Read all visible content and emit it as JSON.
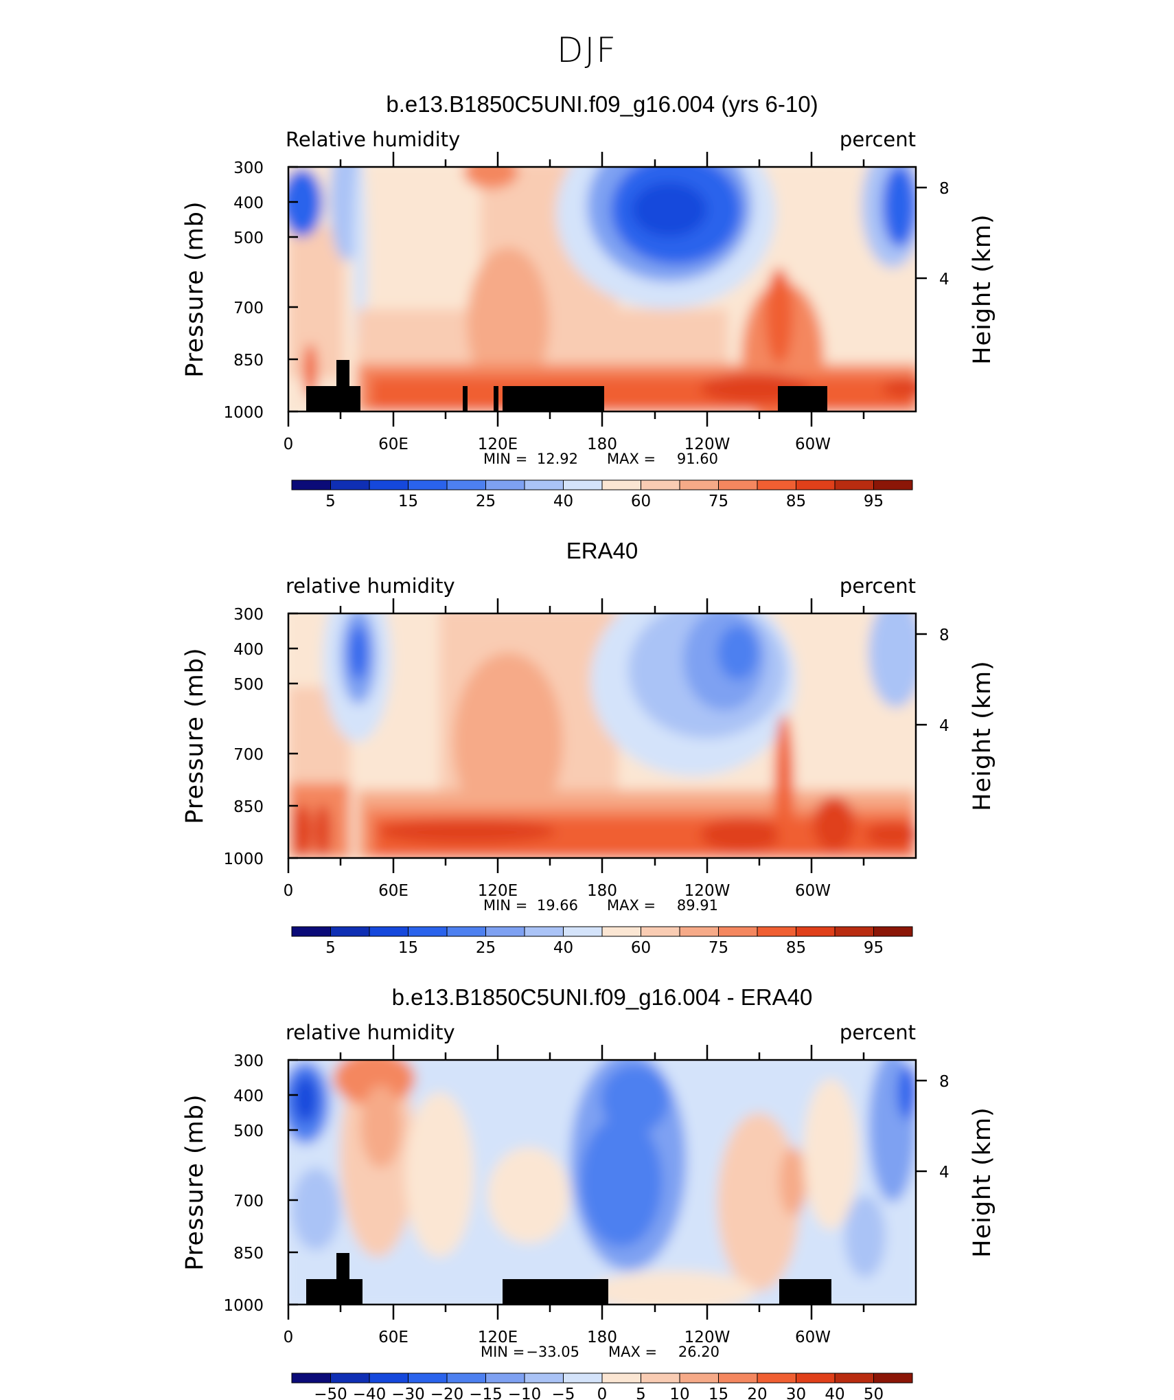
{
  "figure_title": "DJF",
  "colors": {
    "scale": [
      "#0b0b78",
      "#0f2fb4",
      "#1548dc",
      "#2a63ec",
      "#4d80f0",
      "#7ea1f2",
      "#aac3f6",
      "#d4e3fa",
      "#fbe6d3",
      "#f9ccb3",
      "#f6aa88",
      "#f4875f",
      "#f05f32",
      "#e0401a",
      "#b92c10",
      "#8b1607"
    ],
    "land": "#000000"
  },
  "panels": [
    {
      "title": "b.e13.B1850C5UNI.f09_g16.004 (yrs 6-10)",
      "left_label": "Relative humidity",
      "right_label": "percent",
      "min_label": "MIN =",
      "min_value": "12.92",
      "max_label": "MAX =",
      "max_value": "91.60",
      "colorbar_labels": [
        "5",
        "15",
        "25",
        "40",
        "60",
        "75",
        "85",
        "95"
      ]
    },
    {
      "title": "ERA40",
      "left_label": "relative humidity",
      "right_label": "percent",
      "min_label": "MIN =",
      "min_value": "19.66",
      "max_label": "MAX =",
      "max_value": "89.91",
      "colorbar_labels": [
        "5",
        "15",
        "25",
        "40",
        "60",
        "75",
        "85",
        "95"
      ]
    },
    {
      "title": "b.e13.B1850C5UNI.f09_g16.004 - ERA40",
      "left_label": "relative humidity",
      "right_label": "percent",
      "min_label": "MIN =",
      "min_value": "−33.05",
      "max_label": "MAX =",
      "max_value": "26.20",
      "colorbar_labels": [
        "−50",
        "−40",
        "−30",
        "−20",
        "−15",
        "−10",
        "−5",
        "0",
        "5",
        "10",
        "15",
        "20",
        "30",
        "40",
        "50"
      ]
    }
  ],
  "chart_data": [
    {
      "type": "heatmap",
      "title": "b.e13.B1850C5UNI.f09_g16.004 (yrs 6-10)",
      "variable": "Relative humidity",
      "units": "percent",
      "xlabel": "",
      "ylabel": "Pressure (mb)",
      "y2label": "Height (km)",
      "x_tick_labels": [
        "0",
        "60E",
        "120E",
        "180",
        "120W",
        "60W"
      ],
      "y_tick_labels": [
        "300",
        "400",
        "500",
        "700",
        "850",
        "1000"
      ],
      "y2_tick_labels": [
        "8",
        "4"
      ],
      "xlim": [
        0,
        360
      ],
      "ylim": [
        1000,
        300
      ],
      "y_scale": "log",
      "min": 12.92,
      "max": 91.6,
      "contour_levels": [
        5,
        10,
        15,
        20,
        25,
        30,
        40,
        50,
        60,
        70,
        75,
        80,
        85,
        90,
        95
      ]
    },
    {
      "type": "heatmap",
      "title": "ERA40",
      "variable": "relative humidity",
      "units": "percent",
      "xlabel": "",
      "ylabel": "Pressure (mb)",
      "y2label": "Height (km)",
      "x_tick_labels": [
        "0",
        "60E",
        "120E",
        "180",
        "120W",
        "60W"
      ],
      "y_tick_labels": [
        "300",
        "400",
        "500",
        "700",
        "850",
        "1000"
      ],
      "y2_tick_labels": [
        "8",
        "4"
      ],
      "xlim": [
        0,
        360
      ],
      "ylim": [
        1000,
        300
      ],
      "y_scale": "log",
      "min": 19.66,
      "max": 89.91,
      "contour_levels": [
        5,
        10,
        15,
        20,
        25,
        30,
        40,
        50,
        60,
        70,
        75,
        80,
        85,
        90,
        95
      ]
    },
    {
      "type": "heatmap",
      "title": "b.e13.B1850C5UNI.f09_g16.004 - ERA40",
      "variable": "relative humidity",
      "units": "percent",
      "xlabel": "",
      "ylabel": "Pressure (mb)",
      "y2label": "Height (km)",
      "x_tick_labels": [
        "0",
        "60E",
        "120E",
        "180",
        "120W",
        "60W"
      ],
      "y_tick_labels": [
        "300",
        "400",
        "500",
        "700",
        "850",
        "1000"
      ],
      "y2_tick_labels": [
        "8",
        "4"
      ],
      "xlim": [
        0,
        360
      ],
      "ylim": [
        1000,
        300
      ],
      "y_scale": "log",
      "min": -33.05,
      "max": 26.2,
      "contour_levels": [
        -50,
        -40,
        -30,
        -20,
        -15,
        -10,
        -5,
        0,
        5,
        10,
        15,
        20,
        30,
        40,
        50
      ]
    }
  ]
}
